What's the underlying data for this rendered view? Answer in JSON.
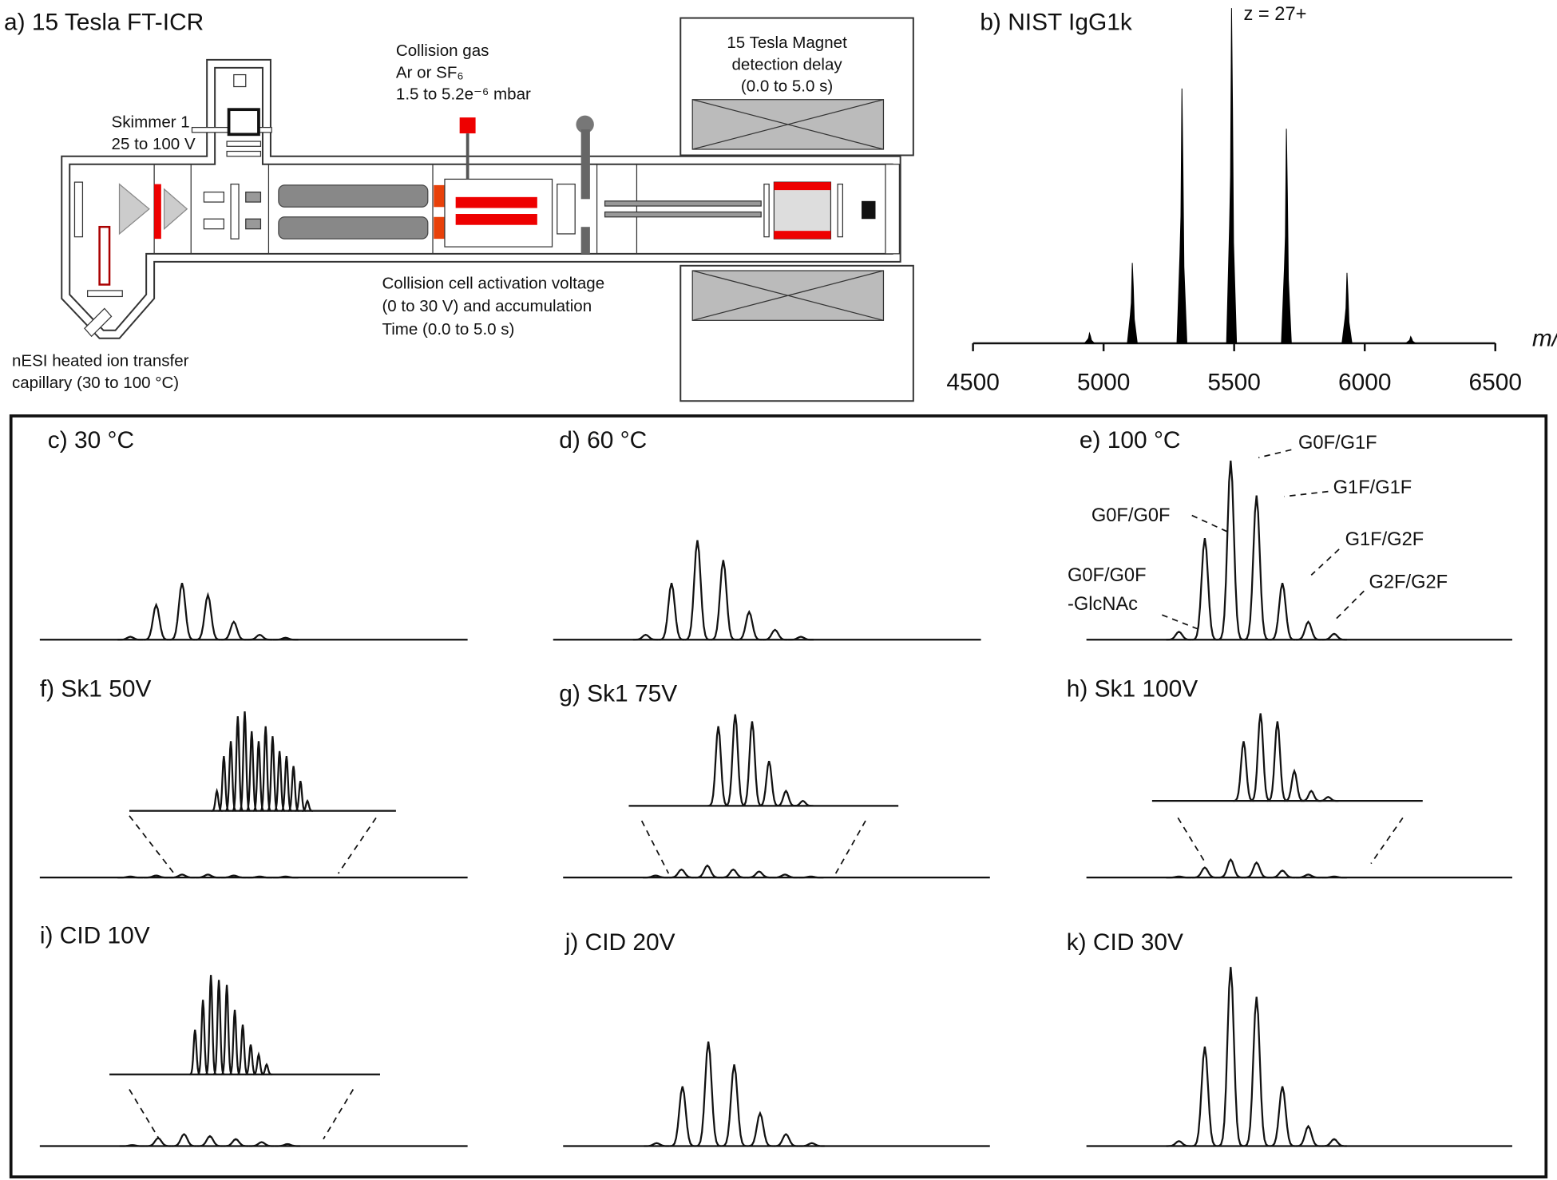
{
  "panel_a": {
    "label": "a) 15 Tesla FT-ICR",
    "collision_gas": [
      "Collision gas",
      "Ar or SF₆",
      "1.5 to 5.2e⁻⁶ mbar"
    ],
    "skimmer": [
      "Skimmer 1",
      "25 to 100 V"
    ],
    "magnet": [
      "15 Tesla Magnet",
      "detection delay",
      "(0.0 to 5.0 s)"
    ],
    "collision_cell": [
      "Collision cell activation voltage",
      "(0 to 30 V) and accumulation",
      "Time (0.0 to 5.0 s)"
    ],
    "source": [
      "nESI heated ion transfer",
      "capillary (30 to 100 °C)"
    ]
  },
  "chart_data": {
    "type": "bar",
    "title": "b) NIST IgG1k",
    "annotation": "z = 27+",
    "x_label": "m/z",
    "x": [
      4946,
      5110,
      5300,
      5490,
      5700,
      5932,
      6176
    ],
    "values": [
      3,
      24,
      76,
      100,
      64,
      21,
      2
    ],
    "color": "#000000",
    "xlim": [
      4500,
      6500
    ],
    "ylim": [
      0,
      100
    ],
    "xticks": [
      4500,
      5000,
      5500,
      6000,
      6500
    ]
  },
  "spectra": [
    {
      "label": "c) 30 °C",
      "peaks": [
        3,
        35,
        57,
        45,
        18,
        5,
        2
      ]
    },
    {
      "label": "d) 60 °C",
      "peaks": [
        5,
        57,
        100,
        80,
        28,
        10,
        3
      ]
    },
    {
      "label": "e) 100 °C",
      "peaks": [
        8,
        102,
        180,
        145,
        57,
        18,
        6
      ]
    },
    {
      "label": "f) Sk1 50V",
      "peaks": [
        1,
        2,
        3,
        3,
        2,
        1,
        1
      ],
      "inset": [
        20,
        55,
        70,
        95,
        100,
        80,
        70,
        85,
        75,
        60,
        55,
        45,
        30,
        10
      ]
    },
    {
      "label": "g) Sk1 75V",
      "peaks": [
        2,
        8,
        12,
        8,
        6,
        3,
        1
      ],
      "inset": [
        80,
        92,
        85,
        45,
        15,
        5
      ]
    },
    {
      "label": "h) Sk1 100V",
      "peaks": [
        1,
        10,
        18,
        15,
        7,
        3,
        1
      ],
      "inset": [
        60,
        88,
        80,
        30,
        10,
        4
      ]
    },
    {
      "label": "i) CID 10V",
      "peaks": [
        1,
        8,
        12,
        10,
        7,
        4,
        2
      ],
      "inset": [
        45,
        75,
        100,
        95,
        90,
        65,
        50,
        30,
        20,
        10
      ]
    },
    {
      "label": "j) CID 20V",
      "peaks": [
        3,
        60,
        105,
        82,
        33,
        12,
        3
      ]
    },
    {
      "label": "k) CID 30V",
      "peaks": [
        5,
        100,
        180,
        150,
        60,
        20,
        7
      ]
    }
  ],
  "peak_labels": [
    [
      "G0F/G0F",
      "-GlcNAc"
    ],
    [
      "G0F/G0F"
    ],
    [
      "G0F/G1F"
    ],
    [
      "G1F/G1F"
    ],
    [
      "G1F/G2F"
    ],
    [
      "G2F/G2F"
    ]
  ]
}
